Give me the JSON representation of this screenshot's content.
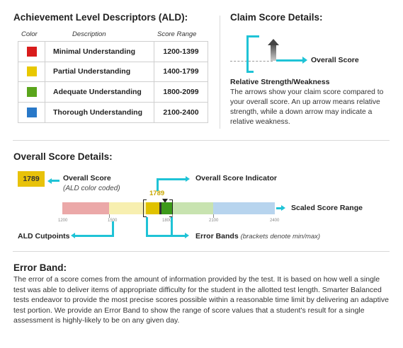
{
  "ald": {
    "title": "Achievement Level Descriptors (ALD):",
    "col_color": "Color",
    "col_desc": "Description",
    "col_range": "Score Range",
    "rows": [
      {
        "color": "#d91c1c",
        "description": "Minimal Understanding",
        "range": "1200-1399"
      },
      {
        "color": "#e8c800",
        "description": "Partial Understanding",
        "range": "1400-1799"
      },
      {
        "color": "#5aa51c",
        "description": "Adequate Understanding",
        "range": "1800-2099"
      },
      {
        "color": "#2878c8",
        "description": "Thorough Understanding",
        "range": "2100-2400"
      }
    ]
  },
  "claim": {
    "title": "Claim Score Details:",
    "overall_label": "Overall Score",
    "rel_title": "Relative Strength/Weakness",
    "rel_text": "The arrows show your claim score compared to your overall score.  An up arrow means relative strength, while a down arrow may indicate a relative weakness."
  },
  "overall": {
    "title": "Overall Score Details:",
    "score": "1789",
    "overall_label": "Overall Score",
    "overall_sub": "(ALD color coded)",
    "indicator_label": "Overall Score Indicator",
    "bar_score": "1789",
    "scaled_label": "Scaled Score Range",
    "cutpoints_label": "ALD Cutpoints",
    "error_bands_label": "Error Bands",
    "error_bands_sub": "(brackets denote min/max)",
    "ticks": [
      "1200",
      "1500",
      "1800",
      "2100",
      "2400"
    ]
  },
  "error_band": {
    "title": "Error Band:",
    "text": "The error of a score comes from the amount of information provided by the test. It is based on how well a single test was able to deliver items of appropriate difficulty for the student in the allotted test length. Smarter Balanced tests endeavor to provide the most precise scores possible within a reasonable time limit by delivering an adaptive test portion. We provide an Error Band to show the range of score values that a student's result for a single assessment is highly-likely to be on any given day."
  },
  "colors": {
    "accent_cyan": "#1fc3d6",
    "score_yellow": "#e8c20a"
  }
}
